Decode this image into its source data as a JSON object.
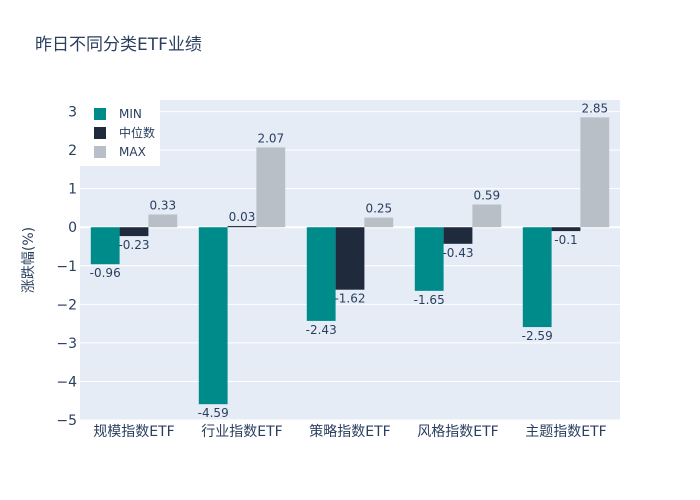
{
  "chart_data": {
    "type": "bar",
    "title": "昨日不同分类ETF业绩",
    "xlabel": "",
    "ylabel": "涨跌幅(%)",
    "categories": [
      "规模指数ETF",
      "行业指数ETF",
      "策略指数ETF",
      "风格指数ETF",
      "主题指数ETF"
    ],
    "series": [
      {
        "name": "MIN",
        "color": "#008b8b",
        "values": [
          -0.96,
          -4.59,
          -2.43,
          -1.65,
          -2.59
        ]
      },
      {
        "name": "中位数",
        "color": "#1f2a3c",
        "values": [
          -0.23,
          0.03,
          -1.62,
          -0.43,
          -0.1
        ]
      },
      {
        "name": "MAX",
        "color": "#b8bfc7",
        "values": [
          0.33,
          2.07,
          0.25,
          0.59,
          2.85
        ]
      }
    ],
    "ylim": [
      -5,
      3.3
    ],
    "yticks": [
      3,
      2,
      1,
      0,
      -1,
      -2,
      -3,
      -4,
      -5
    ],
    "ytick_labels": [
      "3",
      "2",
      "1",
      "0",
      "−1",
      "−2",
      "−3",
      "−4",
      "−5"
    ],
    "grid": true,
    "legend_position": "top-left",
    "plot_bg": "#e5ecf6"
  }
}
